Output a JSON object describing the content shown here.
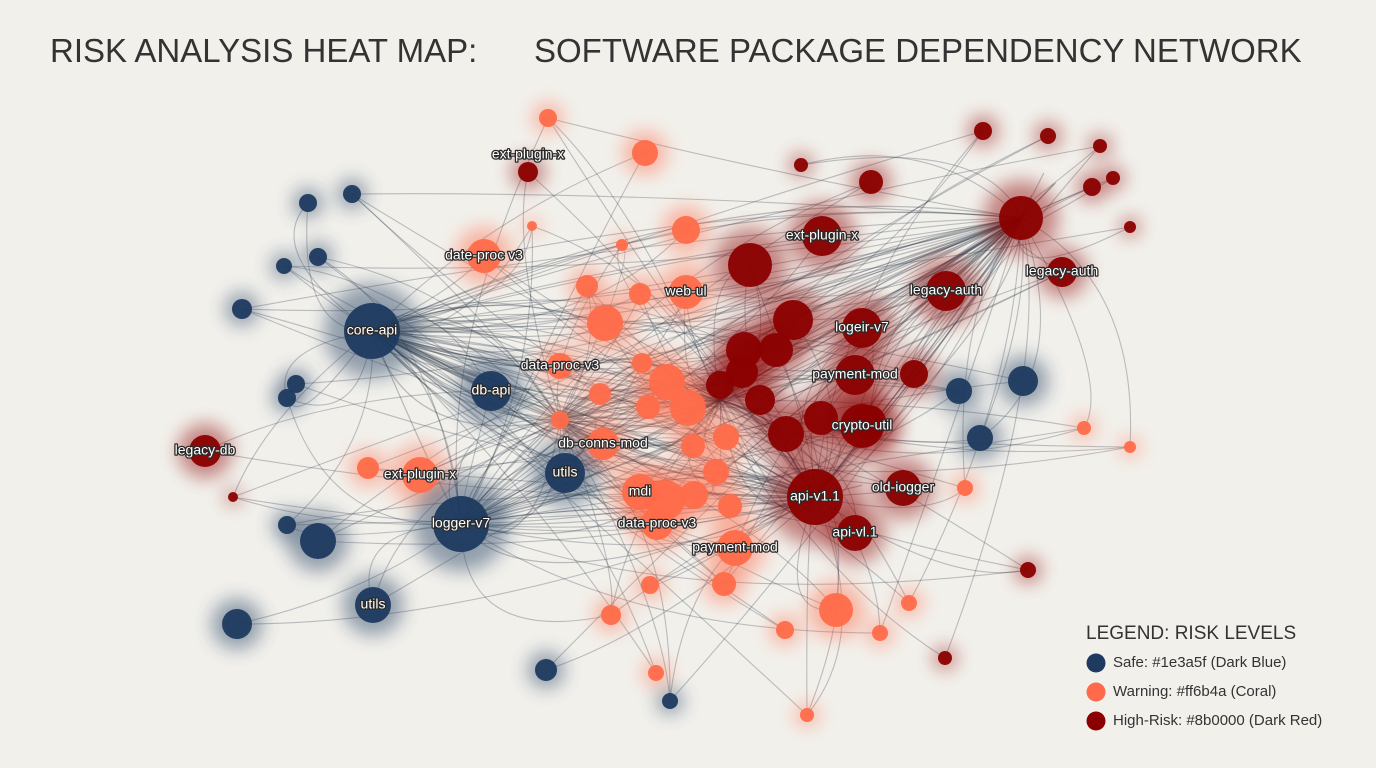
{
  "title": {
    "left": "RISK ANALYSIS HEAT MAP:",
    "right": "SOFTWARE PACKAGE DEPENDENCY NETWORK"
  },
  "nodes": [
    {
      "label": "ext-plugin-x"
    },
    {
      "label": "date-proc v3"
    },
    {
      "label": "web-ul"
    },
    {
      "label": "ext-plugin-x"
    },
    {
      "label": "legacy-auth"
    },
    {
      "label": "legacy-auth"
    },
    {
      "label": "core-api"
    },
    {
      "label": "logeir-v7"
    },
    {
      "label": "data-proc-v3"
    },
    {
      "label": "payment-mod"
    },
    {
      "label": "db-api"
    },
    {
      "label": "crypto-util"
    },
    {
      "label": "legacy-db"
    },
    {
      "label": "db-conns-mod"
    },
    {
      "label": "ext-plugin-x"
    },
    {
      "label": "utils"
    },
    {
      "label": "old-iogger"
    },
    {
      "label": "api-v1.1"
    },
    {
      "label": "mdi"
    },
    {
      "label": "logger-v7"
    },
    {
      "label": "data-proc-v3"
    },
    {
      "label": "api-vl.1"
    },
    {
      "label": "payment-mod"
    },
    {
      "label": "utils"
    }
  ],
  "legend": {
    "title": "LEGEND: RISK LEVELS",
    "items": [
      {
        "label": "Safe: #1e3a5f (Dark Blue)",
        "color": "#1e3a5f"
      },
      {
        "label": "Warning: #ff6b4a (Coral)",
        "color": "#ff6b4a"
      },
      {
        "label": "High-Risk: #8b0000 (Dark Red)",
        "color": "#8b0000"
      }
    ]
  }
}
